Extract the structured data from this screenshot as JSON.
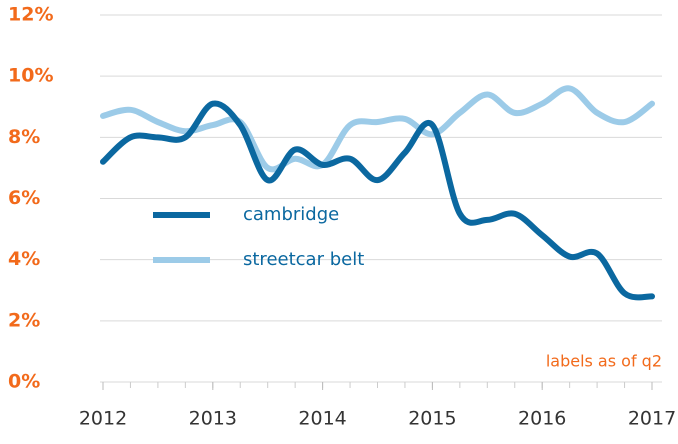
{
  "chart_data": {
    "type": "line",
    "annotation": "labels as of q2",
    "x": [
      2012,
      2012.25,
      2012.5,
      2012.75,
      2013,
      2013.25,
      2013.5,
      2013.75,
      2014,
      2014.25,
      2014.5,
      2014.75,
      2015,
      2015.25,
      2015.5,
      2015.75,
      2016,
      2016.25,
      2016.5,
      2016.75,
      2017
    ],
    "series": [
      {
        "name": "cambridge",
        "color": "#0b68a0",
        "values": [
          7.2,
          8.0,
          8.0,
          8.0,
          9.1,
          8.4,
          6.6,
          7.6,
          7.1,
          7.3,
          6.6,
          7.5,
          8.4,
          5.5,
          5.3,
          5.5,
          4.8,
          4.1,
          4.2,
          2.9,
          2.8
        ]
      },
      {
        "name": "streetcar belt",
        "color": "#9ccbe8",
        "values": [
          8.7,
          8.9,
          8.5,
          8.2,
          8.4,
          8.5,
          7.0,
          7.3,
          7.1,
          8.4,
          8.5,
          8.6,
          8.1,
          8.8,
          9.4,
          8.8,
          9.1,
          9.6,
          8.8,
          8.5,
          9.1
        ]
      }
    ],
    "xlim": [
      2012,
      2017
    ],
    "xticks": [
      2012,
      2013,
      2014,
      2015,
      2016,
      2017
    ],
    "ylim": [
      0,
      12
    ],
    "yticks": [
      {
        "value": 0,
        "label": "0%"
      },
      {
        "value": 2,
        "label": "2%"
      },
      {
        "value": 4,
        "label": "4%"
      },
      {
        "value": 6,
        "label": "6%"
      },
      {
        "value": 8,
        "label": "8%"
      },
      {
        "value": 10,
        "label": "10%"
      },
      {
        "value": 12,
        "label": "12%"
      }
    ],
    "grid": true
  }
}
